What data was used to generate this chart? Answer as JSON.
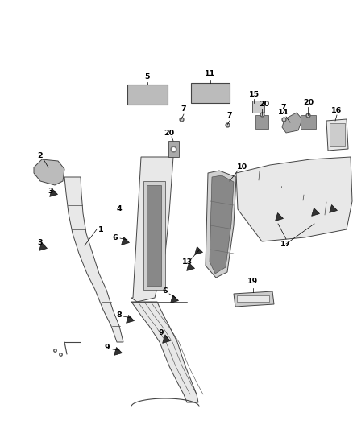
{
  "background_color": "#ffffff",
  "figsize": [
    4.38,
    5.33
  ],
  "dpi": 100,
  "line_color": "#444444",
  "fill_light": "#e8e8e8",
  "fill_mid": "#d0d0d0",
  "fill_dark": "#aaaaaa"
}
